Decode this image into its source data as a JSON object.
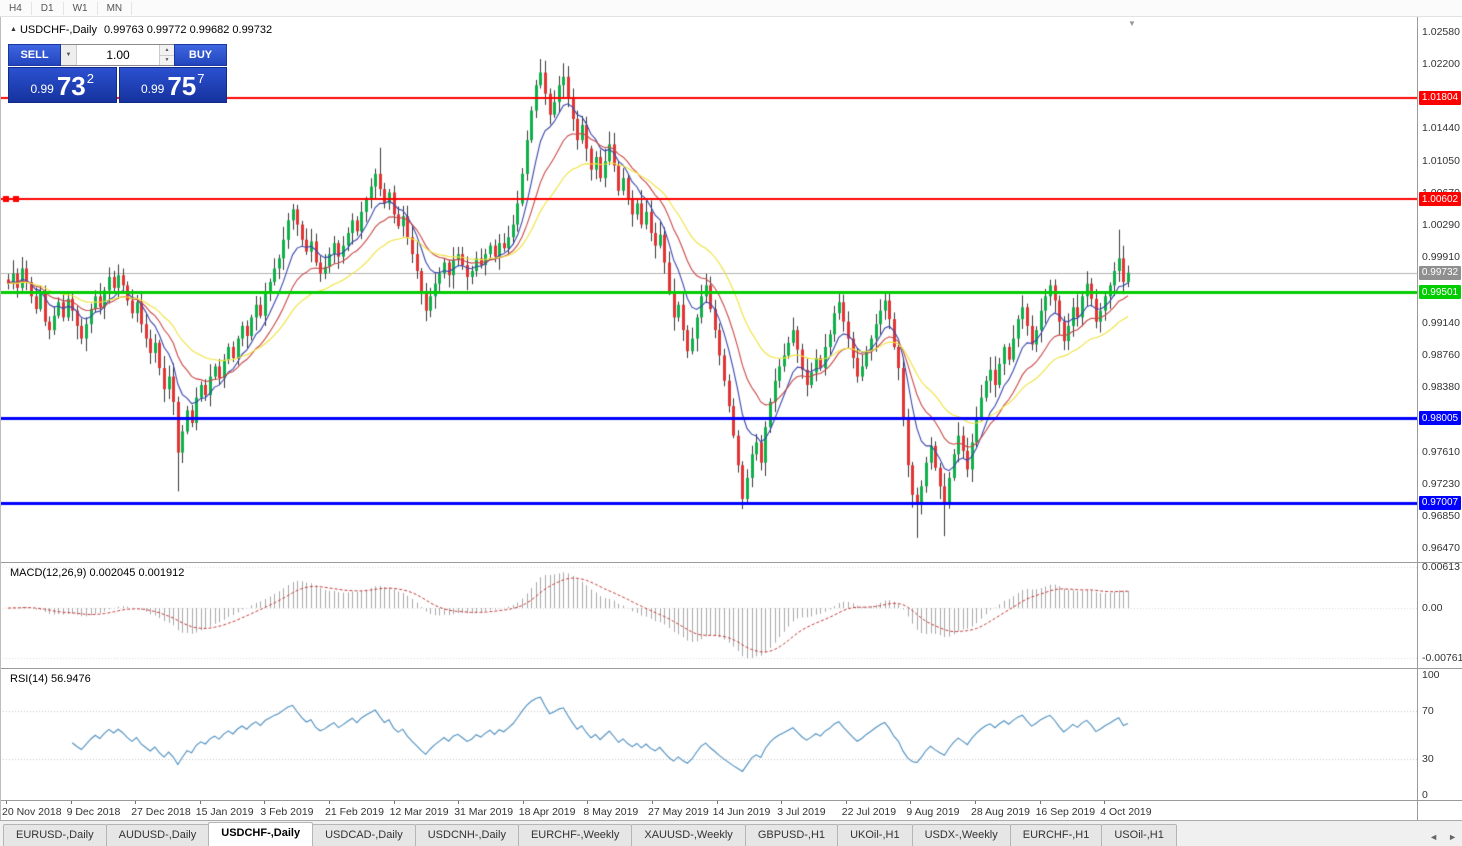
{
  "icons": {
    "collapse": "▲",
    "shift_marker": "▼",
    "dropdown": "▼",
    "spin_up": "▲",
    "spin_down": "▼",
    "tab_left": "◄",
    "tab_right": "►"
  },
  "toolbar": {
    "timeframes": [
      "H4",
      "D1",
      "W1",
      "MN"
    ]
  },
  "chart_header": {
    "title": "USDCHF-,Daily",
    "ohlc": "0.99763 0.99772 0.99682 0.99732"
  },
  "trade_panel": {
    "sell_button": "SELL",
    "buy_button": "BUY",
    "volume": "1.00",
    "sell": {
      "small": "0.99",
      "big": "73",
      "sup": "2"
    },
    "buy": {
      "small": "0.99",
      "big": "75",
      "sup": "7"
    }
  },
  "macd_pane": {
    "title": "MACD(12,26,9)",
    "value_main": "0.002045",
    "value_signal": "0.001912"
  },
  "rsi_pane": {
    "title": "RSI(14)",
    "value": "56.9476"
  },
  "dates": [
    "20 Nov 2018",
    "9 Dec 2018",
    "27 Dec 2018",
    "15 Jan 2019",
    "3 Feb 2019",
    "21 Feb 2019",
    "12 Mar 2019",
    "31 Mar 2019",
    "18 Apr 2019",
    "8 May 2019",
    "27 May 2019",
    "14 Jun 2019",
    "3 Jul 2019",
    "22 Jul 2019",
    "9 Aug 2019",
    "28 Aug 2019",
    "16 Sep 2019",
    "4 Oct 2019"
  ],
  "tabs": {
    "active_index": 2,
    "items": [
      {
        "label": "EURUSD-,Daily"
      },
      {
        "label": "AUDUSD-,Daily"
      },
      {
        "label": "USDCHF-,Daily"
      },
      {
        "label": "USDCAD-,Daily"
      },
      {
        "label": "USDCNH-,Daily"
      },
      {
        "label": "EURCHF-,Weekly"
      },
      {
        "label": "XAUUSD-,Weekly"
      },
      {
        "label": "GBPUSD-,H1"
      },
      {
        "label": "UKOil-,H1"
      },
      {
        "label": "USDX-,Weekly"
      },
      {
        "label": "EURCHF-,H1"
      },
      {
        "label": "USOil-,H1"
      }
    ]
  },
  "chart_data": {
    "type": "candlestick",
    "symbol": "USDCHF",
    "timeframe": "Daily",
    "up_color": "#0fb04a",
    "down_color": "#e23434",
    "wick_color": "#3a3a3a",
    "price_axis": {
      "min": 0.96304,
      "max": 1.02758,
      "ticks": [
        {
          "v": 1.0258,
          "t": "1.02580"
        },
        {
          "v": 1.022,
          "t": "1.02200"
        },
        {
          "v": 1.0144,
          "t": "1.01440"
        },
        {
          "v": 1.0105,
          "t": "1.01050"
        },
        {
          "v": 1.0067,
          "t": "1.00670"
        },
        {
          "v": 1.0029,
          "t": "1.00290"
        },
        {
          "v": 0.9991,
          "t": "0.99910"
        },
        {
          "v": 0.9914,
          "t": "0.99140"
        },
        {
          "v": 0.9876,
          "t": "0.98760"
        },
        {
          "v": 0.9838,
          "t": "0.98380"
        },
        {
          "v": 0.9761,
          "t": "0.97610"
        },
        {
          "v": 0.9723,
          "t": "0.97230"
        },
        {
          "v": 0.9685,
          "t": "0.96850"
        },
        {
          "v": 0.9647,
          "t": "0.96470"
        }
      ]
    },
    "levels": [
      {
        "price": 1.01804,
        "label": "1.01804",
        "color": "#ff0000",
        "width": 2,
        "handles": false
      },
      {
        "price": 1.00602,
        "label": "1.00602",
        "color": "#ff0000",
        "width": 2,
        "handles": true
      },
      {
        "price": 0.99501,
        "label": "0.99501",
        "color": "#00cc00",
        "width": 3,
        "handles": false
      },
      {
        "price": 0.98005,
        "label": "0.98005",
        "color": "#0000ff",
        "width": 3,
        "handles": false
      },
      {
        "price": 0.97007,
        "label": "0.97007",
        "color": "#0000ff",
        "width": 3,
        "handles": false
      }
    ],
    "current_price": {
      "value": 0.99732,
      "label": "0.99732",
      "color": "#8f8f8f",
      "line_color": "#b3b3b3"
    },
    "moving_averages": [
      {
        "period": 8,
        "color": "#3947ad"
      },
      {
        "period": 16,
        "color": "#c84848"
      },
      {
        "period": 30,
        "color": "#efe23d"
      }
    ],
    "macd": {
      "fast": 12,
      "slow": 26,
      "signal": 9,
      "hist_color": "#a8a8a8",
      "signal_color": "#c23b3b",
      "scale": {
        "min": -0.0092,
        "max": 0.0068
      },
      "ticks": [
        {
          "v": 0.00613,
          "t": "0.00613"
        },
        {
          "v": 0,
          "t": "0.00"
        },
        {
          "v": -0.00761,
          "t": "-0.00761"
        }
      ]
    },
    "rsi": {
      "period": 14,
      "color": "#4f8fbf",
      "levels": [
        70,
        30
      ],
      "ticks": [
        {
          "v": 100,
          "t": "100"
        },
        {
          "v": 70,
          "t": "70"
        },
        {
          "v": 30,
          "t": "30"
        },
        {
          "v": 0,
          "t": "0"
        }
      ]
    },
    "closes": [
      0.996,
      0.9972,
      0.9955,
      0.9978,
      0.9962,
      0.9945,
      0.993,
      0.9948,
      0.9915,
      0.9905,
      0.9922,
      0.9938,
      0.992,
      0.9942,
      0.9928,
      0.991,
      0.9895,
      0.9912,
      0.993,
      0.9945,
      0.9932,
      0.9952,
      0.9968,
      0.9955,
      0.997,
      0.9958,
      0.994,
      0.9925,
      0.9938,
      0.9912,
      0.9895,
      0.9878,
      0.989,
      0.986,
      0.9835,
      0.985,
      0.982,
      0.976,
      0.9785,
      0.981,
      0.9795,
      0.9825,
      0.984,
      0.9828,
      0.985,
      0.9862,
      0.9848,
      0.987,
      0.9885,
      0.9872,
      0.9895,
      0.991,
      0.9898,
      0.992,
      0.9935,
      0.9922,
      0.9948,
      0.9962,
      0.9978,
      0.999,
      1.0012,
      1.0035,
      1.0048,
      1.003,
      1.0012,
      0.9998,
      1.001,
      0.9985,
      0.9972,
      0.998,
      0.9995,
      1.0008,
      0.9992,
      1.0005,
      1.002,
      1.0035,
      1.0022,
      1.0045,
      1.006,
      1.0075,
      1.009,
      1.0072,
      1.0055,
      1.0068,
      1.0042,
      1.0028,
      1.004,
      1.0015,
      0.9995,
      0.9975,
      0.995,
      0.9928,
      0.9945,
      0.996,
      0.9972,
      0.9985,
      0.997,
      0.9988,
      0.9995,
      0.9982,
      0.9968,
      0.9975,
      0.999,
      0.9982,
      0.9995,
      1.0005,
      0.9992,
      1.0008,
      1.0002,
      1.0015,
      1.003,
      1.0055,
      1.009,
      1.013,
      1.0165,
      1.0195,
      1.021,
      1.0185,
      1.016,
      1.0175,
      1.0195,
      1.0205,
      1.018,
      1.0155,
      1.013,
      1.0148,
      1.012,
      1.0095,
      1.011,
      1.0085,
      1.0105,
      1.0125,
      1.01,
      1.007,
      1.0085,
      1.006,
      1.0042,
      1.0055,
      1.003,
      1.0045,
      1.002,
      1.0005,
      1.0018,
      0.9985,
      0.995,
      0.992,
      0.9935,
      0.9905,
      0.988,
      0.9895,
      0.992,
      0.9945,
      0.9958,
      0.993,
      0.9905,
      0.9875,
      0.9845,
      0.9815,
      0.978,
      0.9745,
      0.9705,
      0.973,
      0.9758,
      0.9772,
      0.9748,
      0.979,
      0.982,
      0.9845,
      0.9862,
      0.9875,
      0.989,
      0.9905,
      0.9882,
      0.9858,
      0.984,
      0.9855,
      0.9872,
      0.986,
      0.9885,
      0.99,
      0.9925,
      0.9938,
      0.9915,
      0.9895,
      0.9872,
      0.985,
      0.9862,
      0.988,
      0.9895,
      0.9912,
      0.9928,
      0.994,
      0.9918,
      0.9885,
      0.986,
      0.98,
      0.9745,
      0.971,
      0.9698,
      0.972,
      0.9748,
      0.9768,
      0.9742,
      0.972,
      0.97,
      0.973,
      0.9758,
      0.978,
      0.9762,
      0.974,
      0.9772,
      0.98,
      0.9825,
      0.9845,
      0.9858,
      0.984,
      0.9865,
      0.9885,
      0.987,
      0.9895,
      0.9918,
      0.9932,
      0.991,
      0.9888,
      0.9905,
      0.9928,
      0.9945,
      0.9958,
      0.994,
      0.9915,
      0.9892,
      0.991,
      0.9932,
      0.992,
      0.9945,
      0.996,
      0.9942,
      0.9915,
      0.9928,
      0.9945,
      0.9958,
      0.9975,
      0.999,
      0.9962,
      0.9973
    ],
    "wick_overrides": {
      "37": {
        "low": 0.9714
      },
      "81": {
        "high": 1.0121
      },
      "116": {
        "high": 1.0226
      },
      "121": {
        "high": 1.0221
      },
      "160": {
        "low": 0.9693
      },
      "198": {
        "low": 0.9659
      },
      "204": {
        "low": 0.9661
      },
      "242": {
        "high": 1.0024
      }
    }
  }
}
